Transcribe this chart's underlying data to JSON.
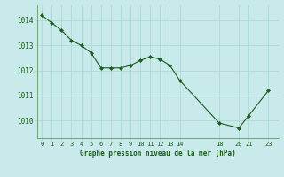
{
  "x": [
    0,
    1,
    2,
    3,
    4,
    5,
    6,
    7,
    8,
    9,
    10,
    11,
    12,
    13,
    14,
    18,
    20,
    21,
    23
  ],
  "y": [
    1014.2,
    1013.9,
    1013.6,
    1013.2,
    1013.0,
    1012.7,
    1012.1,
    1012.1,
    1012.1,
    1012.2,
    1012.4,
    1012.55,
    1012.45,
    1012.2,
    1011.6,
    1009.9,
    1009.7,
    1010.2,
    1011.2
  ],
  "line_color": "#1a5c1a",
  "marker_color": "#1a5c1a",
  "bg_color": "#c8eaea",
  "grid_color": "#a8d4d4",
  "tick_label_color": "#1a5c1a",
  "xlabel": "Graphe pression niveau de la mer (hPa)",
  "xlabel_color": "#1a5c1a",
  "xticks": [
    0,
    1,
    2,
    3,
    4,
    5,
    6,
    7,
    8,
    9,
    10,
    11,
    12,
    13,
    14,
    18,
    20,
    21,
    23
  ],
  "yticks": [
    1010,
    1011,
    1012,
    1013,
    1014
  ],
  "ylim": [
    1009.3,
    1014.6
  ],
  "xlim": [
    -0.5,
    24.0
  ]
}
